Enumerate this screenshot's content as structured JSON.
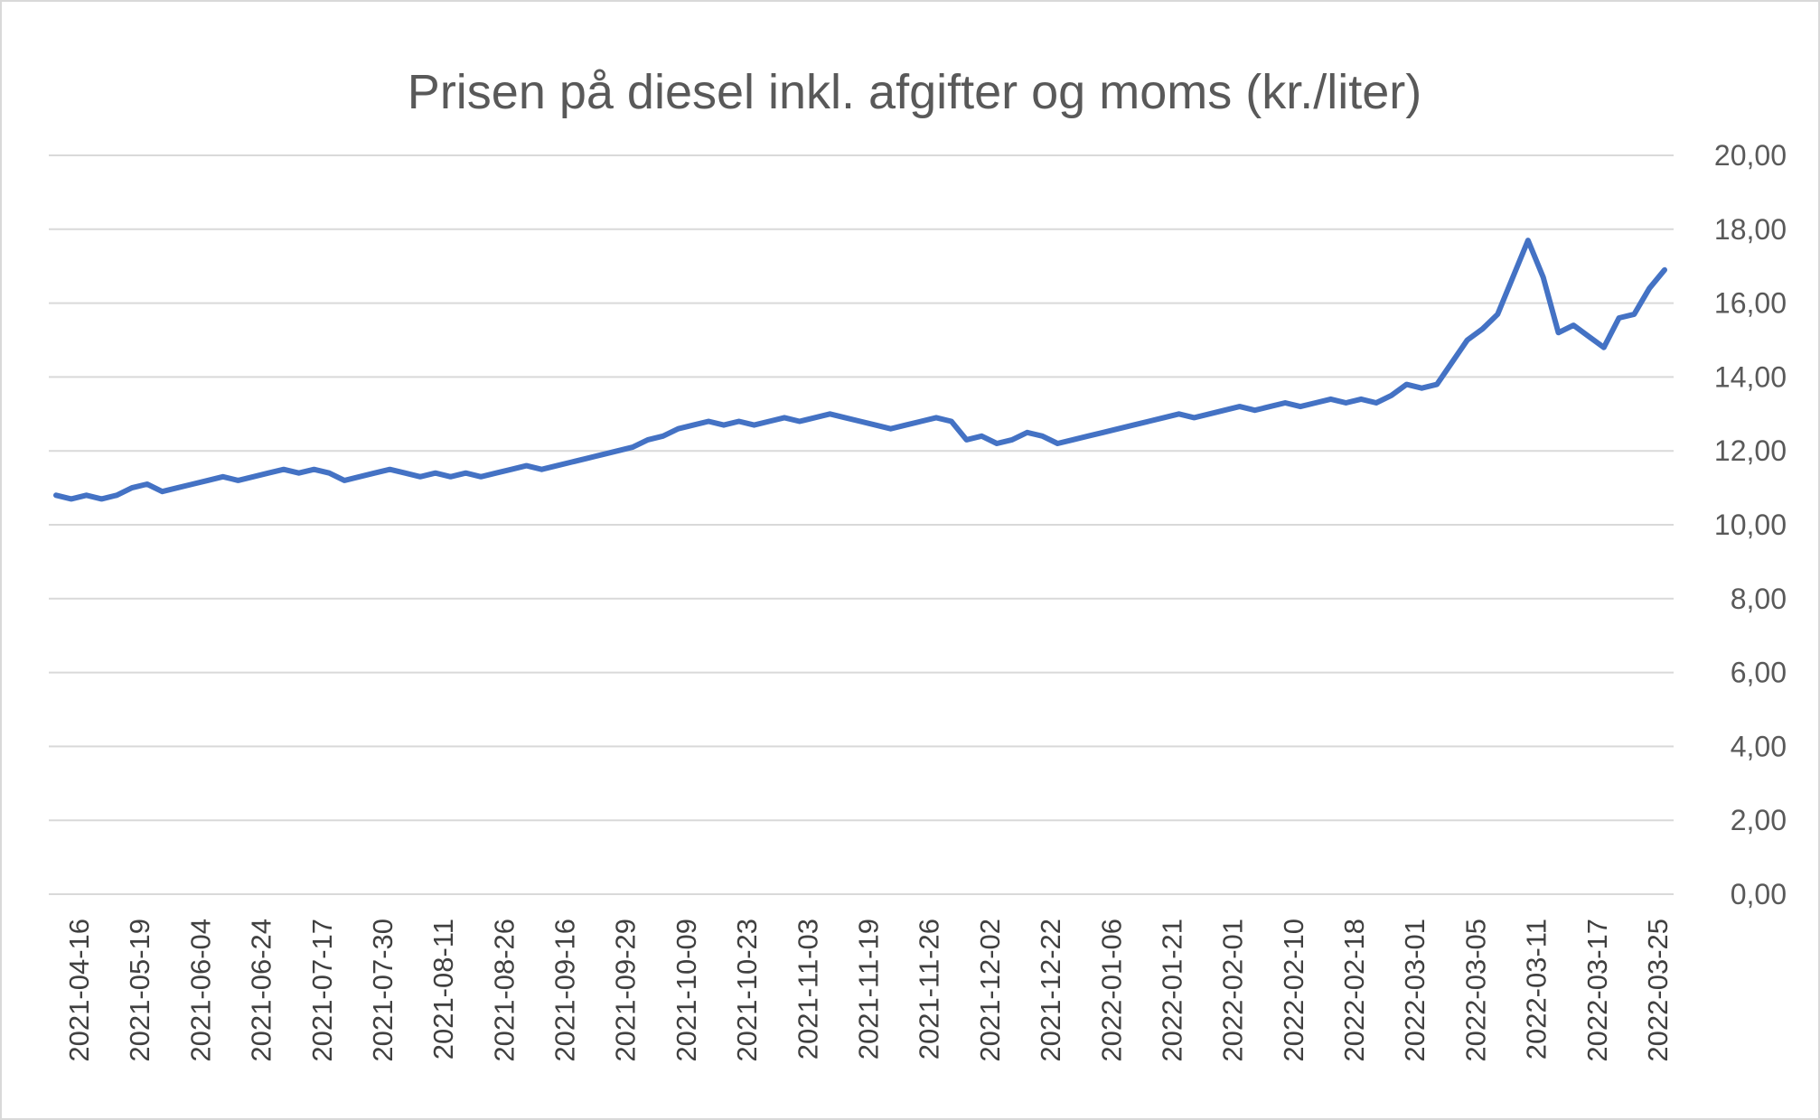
{
  "chart_data": {
    "type": "line",
    "title": "Prisen på diesel inkl. afgifter og moms  (kr./liter)",
    "xlabel": "",
    "ylabel": "",
    "ylim": [
      0,
      20
    ],
    "y_axis_position": "right",
    "grid": true,
    "legend": "none",
    "colors": {
      "line": "#4472C4",
      "grid": "#D9D9D9",
      "text": "#595959"
    },
    "y_ticks": [
      "0,00",
      "2,00",
      "4,00",
      "6,00",
      "8,00",
      "10,00",
      "12,00",
      "14,00",
      "16,00",
      "18,00",
      "20,00"
    ],
    "x_tick_labels": [
      "2021-04-16",
      "2021-05-19",
      "2021-06-04",
      "2021-06-24",
      "2021-07-17",
      "2021-07-30",
      "2021-08-11",
      "2021-08-26",
      "2021-09-16",
      "2021-09-29",
      "2021-10-09",
      "2021-10-23",
      "2021-11-03",
      "2021-11-19",
      "2021-11-26",
      "2021-12-02",
      "2021-12-22",
      "2022-01-06",
      "2022-01-21",
      "2022-02-01",
      "2022-02-10",
      "2022-02-18",
      "2022-03-01",
      "2022-03-05",
      "2022-03-11",
      "2022-03-17",
      "2022-03-25"
    ],
    "series": [
      {
        "values": [
          10.8,
          10.7,
          10.8,
          10.7,
          10.8,
          11.0,
          11.1,
          10.9,
          11.0,
          11.1,
          11.2,
          11.3,
          11.2,
          11.3,
          11.4,
          11.5,
          11.4,
          11.5,
          11.4,
          11.2,
          11.3,
          11.4,
          11.5,
          11.4,
          11.3,
          11.4,
          11.3,
          11.4,
          11.3,
          11.4,
          11.5,
          11.6,
          11.5,
          11.6,
          11.7,
          11.8,
          11.9,
          12.0,
          12.1,
          12.3,
          12.4,
          12.6,
          12.7,
          12.8,
          12.7,
          12.8,
          12.7,
          12.8,
          12.9,
          12.8,
          12.9,
          13.0,
          12.9,
          12.8,
          12.7,
          12.6,
          12.7,
          12.8,
          12.9,
          12.8,
          12.3,
          12.4,
          12.2,
          12.3,
          12.5,
          12.4,
          12.2,
          12.3,
          12.4,
          12.5,
          12.6,
          12.7,
          12.8,
          12.9,
          13.0,
          12.9,
          13.0,
          13.1,
          13.2,
          13.1,
          13.2,
          13.3,
          13.2,
          13.3,
          13.4,
          13.3,
          13.4,
          13.3,
          13.5,
          13.8,
          13.7,
          13.8,
          14.4,
          15.0,
          15.3,
          15.7,
          16.7,
          17.7,
          16.7,
          15.2,
          15.4,
          15.1,
          14.8,
          15.6,
          15.7,
          16.4,
          16.9
        ]
      }
    ]
  }
}
